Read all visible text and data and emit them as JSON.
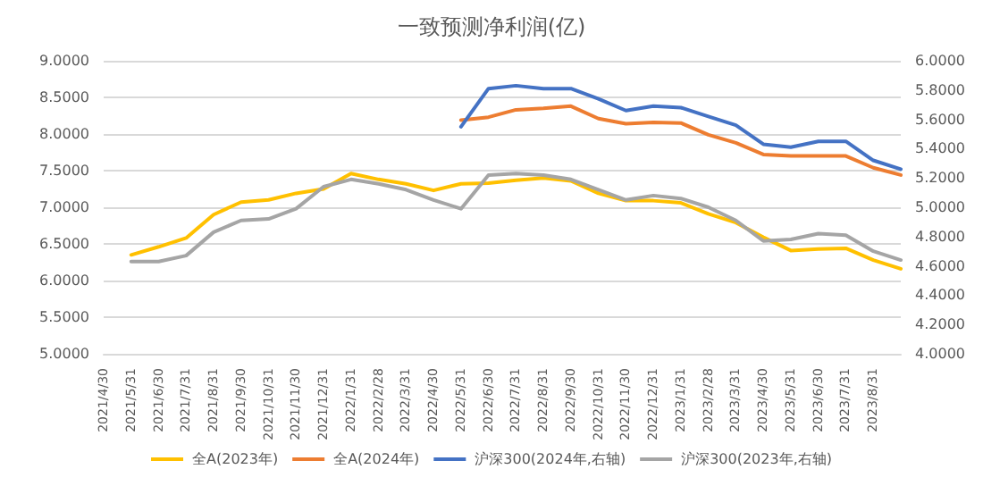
{
  "chart_data": {
    "type": "line",
    "title": "一致预测净利润(亿)",
    "categories": [
      "2021/4/30",
      "2021/5/31",
      "2021/6/30",
      "2021/7/31",
      "2021/8/31",
      "2021/9/30",
      "2021/10/31",
      "2021/11/30",
      "2021/12/31",
      "2022/1/31",
      "2022/2/28",
      "2022/3/31",
      "2022/4/30",
      "2022/5/31",
      "2022/6/30",
      "2022/7/31",
      "2022/8/31",
      "2022/9/30",
      "2022/10/31",
      "2022/11/30",
      "2022/12/31",
      "2023/1/31",
      "2023/2/28",
      "2023/3/31",
      "2023/4/30",
      "2023/5/31",
      "2023/6/30",
      "2023/7/31",
      "2023/8/31",
      null
    ],
    "series": [
      {
        "name": "全A(2023年)",
        "color": "#ffc000",
        "values": [
          null,
          6.35,
          6.46,
          6.58,
          6.9,
          7.07,
          7.1,
          7.19,
          7.25,
          7.46,
          7.38,
          7.32,
          7.23,
          7.32,
          7.33,
          7.37,
          7.4,
          7.36,
          7.19,
          7.09,
          7.09,
          7.06,
          6.91,
          6.79,
          6.59,
          6.41,
          6.43,
          6.44,
          6.28,
          6.16
        ]
      },
      {
        "name": "全A(2024年)",
        "color": "#ed7d31",
        "values": [
          null,
          null,
          null,
          null,
          null,
          null,
          null,
          null,
          null,
          null,
          null,
          null,
          null,
          8.19,
          8.23,
          8.33,
          8.35,
          8.38,
          8.21,
          8.14,
          8.16,
          8.15,
          7.99,
          7.88,
          7.72,
          7.7,
          7.7,
          7.7,
          7.54,
          7.44
        ]
      },
      {
        "name": "沪深300(2024年,右轴)",
        "color": "#4472c4",
        "axis": "y2",
        "values": [
          null,
          null,
          null,
          null,
          null,
          null,
          null,
          null,
          null,
          null,
          null,
          null,
          null,
          5.55,
          5.81,
          5.83,
          5.81,
          5.81,
          5.74,
          5.66,
          5.69,
          5.68,
          5.62,
          5.56,
          5.43,
          5.41,
          5.45,
          5.45,
          5.32,
          5.26
        ]
      },
      {
        "name": "沪深300(2023年,右轴)",
        "color": "#a5a5a5",
        "axis": "y2",
        "values": [
          null,
          4.63,
          4.63,
          4.67,
          4.83,
          4.91,
          4.92,
          4.99,
          5.14,
          5.19,
          5.16,
          5.12,
          5.05,
          4.99,
          5.22,
          5.23,
          5.22,
          5.19,
          5.12,
          5.05,
          5.08,
          5.06,
          5.0,
          4.91,
          4.77,
          4.78,
          4.82,
          4.81,
          4.7,
          4.64
        ]
      }
    ],
    "ylim": [
      5,
      9
    ],
    "yticks": [
      {
        "value": 5,
        "label": "5.0000"
      },
      {
        "value": 5.5,
        "label": "5.5000"
      },
      {
        "value": 6,
        "label": "6.0000"
      },
      {
        "value": 6.5,
        "label": "6.5000"
      },
      {
        "value": 7,
        "label": "7.0000"
      },
      {
        "value": 7.5,
        "label": "7.5000"
      },
      {
        "value": 8,
        "label": "8.0000"
      },
      {
        "value": 8.5,
        "label": "8.5000"
      },
      {
        "value": 9,
        "label": "9.0000"
      }
    ],
    "y2lim": [
      4,
      6
    ],
    "y2ticks": [
      {
        "value": 4,
        "label": "4.0000"
      },
      {
        "value": 4.2,
        "label": "4.2000"
      },
      {
        "value": 4.4,
        "label": "4.4000"
      },
      {
        "value": 4.6,
        "label": "4.6000"
      },
      {
        "value": 4.8,
        "label": "4.8000"
      },
      {
        "value": 5,
        "label": "5.0000"
      },
      {
        "value": 5.2,
        "label": "5.2000"
      },
      {
        "value": 5.4,
        "label": "5.4000"
      },
      {
        "value": 5.6,
        "label": "5.6000"
      },
      {
        "value": 5.8,
        "label": "5.8000"
      },
      {
        "value": 6,
        "label": "6.0000"
      }
    ],
    "grid": "y",
    "legend": "bottom",
    "marker": "none",
    "line_style": "solid"
  }
}
